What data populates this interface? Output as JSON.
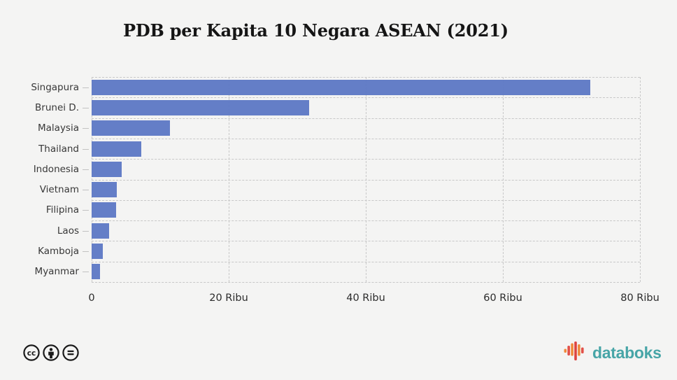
{
  "chart_data": {
    "type": "bar",
    "orientation": "horizontal",
    "title": "PDB per Kapita 10 Negara ASEAN (2021)",
    "categories": [
      "Singapura",
      "Brunei D.",
      "Malaysia",
      "Thailand",
      "Indonesia",
      "Vietnam",
      "Filipina",
      "Laos",
      "Kamboja",
      "Myanmar"
    ],
    "values": [
      72.8,
      31.7,
      11.4,
      7.2,
      4.4,
      3.7,
      3.6,
      2.6,
      1.6,
      1.2
    ],
    "values_unit": "Ribu",
    "x_tick_labels": [
      "0",
      "20 Ribu",
      "40 Ribu",
      "60 Ribu",
      "80 Ribu"
    ],
    "x_tick_values": [
      0,
      20,
      40,
      60,
      80
    ],
    "xlim": [
      0,
      80
    ],
    "xlabel": "",
    "ylabel": "",
    "grid": "dashed",
    "legend": "none",
    "bar_color": "#5e79c5",
    "grid_color": "#c8c8c8",
    "background_color": "#f4f4f3"
  },
  "footer": {
    "license_icons": [
      "cc-icon",
      "cc-by-person-icon",
      "cc-nd-equals-icon"
    ],
    "brand": {
      "name": "databoks",
      "text_color": "#47a5a7",
      "logo_bar_colors": [
        "#f08a3c",
        "#e25048",
        "#f08a3c",
        "#dd4340",
        "#f08a3c",
        "#e25048"
      ]
    }
  }
}
